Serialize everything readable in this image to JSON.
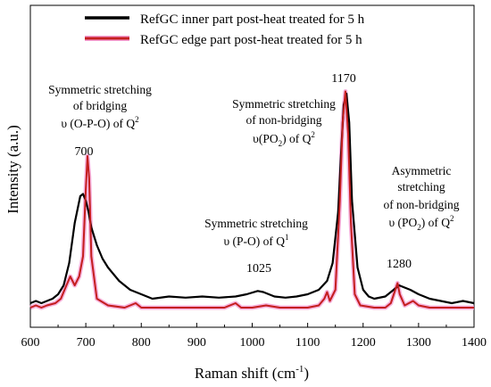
{
  "chart_data": {
    "type": "line",
    "xlabel": "Raman shift (cm",
    "xlabel_sup": "-1",
    "xlabel_tail": ")",
    "ylabel": "Intensity (a.u.)",
    "xlim": [
      600,
      1400
    ],
    "ylim": [
      0,
      1
    ],
    "x_ticks": [
      "600",
      "700",
      "800",
      "900",
      "1000",
      "1100",
      "1200",
      "1300",
      "1400"
    ],
    "legend_position": "top-center",
    "series": [
      {
        "name": "RefGC inner part post-heat treated for 5 h",
        "color": "#000000",
        "points": [
          [
            600,
            0.04
          ],
          [
            610,
            0.05
          ],
          [
            620,
            0.04
          ],
          [
            630,
            0.05
          ],
          [
            640,
            0.06
          ],
          [
            650,
            0.08
          ],
          [
            660,
            0.12
          ],
          [
            670,
            0.22
          ],
          [
            680,
            0.4
          ],
          [
            690,
            0.52
          ],
          [
            695,
            0.53
          ],
          [
            700,
            0.5
          ],
          [
            705,
            0.45
          ],
          [
            710,
            0.38
          ],
          [
            720,
            0.3
          ],
          [
            730,
            0.24
          ],
          [
            740,
            0.2
          ],
          [
            760,
            0.14
          ],
          [
            780,
            0.1
          ],
          [
            800,
            0.08
          ],
          [
            820,
            0.06
          ],
          [
            850,
            0.07
          ],
          [
            880,
            0.065
          ],
          [
            910,
            0.07
          ],
          [
            940,
            0.065
          ],
          [
            970,
            0.07
          ],
          [
            990,
            0.08
          ],
          [
            1010,
            0.095
          ],
          [
            1020,
            0.09
          ],
          [
            1040,
            0.07
          ],
          [
            1060,
            0.065
          ],
          [
            1080,
            0.07
          ],
          [
            1100,
            0.08
          ],
          [
            1120,
            0.1
          ],
          [
            1135,
            0.14
          ],
          [
            1145,
            0.22
          ],
          [
            1155,
            0.45
          ],
          [
            1160,
            0.7
          ],
          [
            1165,
            0.93
          ],
          [
            1170,
            0.98
          ],
          [
            1175,
            0.85
          ],
          [
            1180,
            0.5
          ],
          [
            1190,
            0.2
          ],
          [
            1200,
            0.1
          ],
          [
            1210,
            0.07
          ],
          [
            1220,
            0.06
          ],
          [
            1240,
            0.07
          ],
          [
            1255,
            0.1
          ],
          [
            1265,
            0.12
          ],
          [
            1275,
            0.11
          ],
          [
            1285,
            0.1
          ],
          [
            1300,
            0.08
          ],
          [
            1320,
            0.06
          ],
          [
            1340,
            0.05
          ],
          [
            1360,
            0.04
          ],
          [
            1380,
            0.05
          ],
          [
            1400,
            0.04
          ]
        ]
      },
      {
        "name": "RefGC edge part post-heat treated for 5 h",
        "color": "#c41e1e",
        "points": [
          [
            600,
            0.02
          ],
          [
            610,
            0.03
          ],
          [
            620,
            0.02
          ],
          [
            630,
            0.03
          ],
          [
            645,
            0.04
          ],
          [
            655,
            0.06
          ],
          [
            665,
            0.12
          ],
          [
            672,
            0.16
          ],
          [
            680,
            0.12
          ],
          [
            688,
            0.16
          ],
          [
            695,
            0.25
          ],
          [
            700,
            0.55
          ],
          [
            703,
            0.7
          ],
          [
            706,
            0.6
          ],
          [
            710,
            0.25
          ],
          [
            720,
            0.06
          ],
          [
            740,
            0.03
          ],
          [
            770,
            0.02
          ],
          [
            790,
            0.04
          ],
          [
            800,
            0.02
          ],
          [
            850,
            0.02
          ],
          [
            900,
            0.02
          ],
          [
            950,
            0.02
          ],
          [
            970,
            0.04
          ],
          [
            980,
            0.02
          ],
          [
            1000,
            0.02
          ],
          [
            1025,
            0.03
          ],
          [
            1050,
            0.02
          ],
          [
            1080,
            0.02
          ],
          [
            1100,
            0.02
          ],
          [
            1120,
            0.03
          ],
          [
            1130,
            0.06
          ],
          [
            1135,
            0.09
          ],
          [
            1140,
            0.05
          ],
          [
            1150,
            0.1
          ],
          [
            1158,
            0.5
          ],
          [
            1163,
            0.85
          ],
          [
            1168,
            0.99
          ],
          [
            1173,
            0.8
          ],
          [
            1178,
            0.4
          ],
          [
            1185,
            0.08
          ],
          [
            1195,
            0.03
          ],
          [
            1220,
            0.02
          ],
          [
            1240,
            0.02
          ],
          [
            1250,
            0.04
          ],
          [
            1258,
            0.1
          ],
          [
            1262,
            0.13
          ],
          [
            1266,
            0.08
          ],
          [
            1275,
            0.03
          ],
          [
            1290,
            0.05
          ],
          [
            1300,
            0.03
          ],
          [
            1320,
            0.02
          ],
          [
            1350,
            0.02
          ],
          [
            1380,
            0.02
          ],
          [
            1400,
            0.02
          ]
        ]
      }
    ],
    "annotations": [
      {
        "label_lines": [
          "Symmetric stretching",
          "of bridging"
        ],
        "formula": {
          "prefix": "υ (O-P-O) of Q",
          "sup": "2",
          "sub": "",
          "suffix": ""
        },
        "peak": "700"
      },
      {
        "label_lines": [
          "Symmetric stretching",
          "of non-bridging"
        ],
        "formula": {
          "prefix": "υ(PO",
          "sub": "2",
          "suffix": ") of Q",
          "sup": "2"
        },
        "peak": "1170"
      },
      {
        "label_lines": [
          "Symmetric stretching"
        ],
        "formula": {
          "prefix": "υ (P-O) of Q",
          "sup": "1",
          "sub": "",
          "suffix": ""
        },
        "peak": "1025"
      },
      {
        "label_lines": [
          "Asymmetric",
          "stretching",
          "of non-bridging"
        ],
        "formula": {
          "prefix": "υ (PO",
          "sub": "2",
          "suffix": ") of Q",
          "sup": "2"
        },
        "peak": "1280"
      }
    ]
  }
}
